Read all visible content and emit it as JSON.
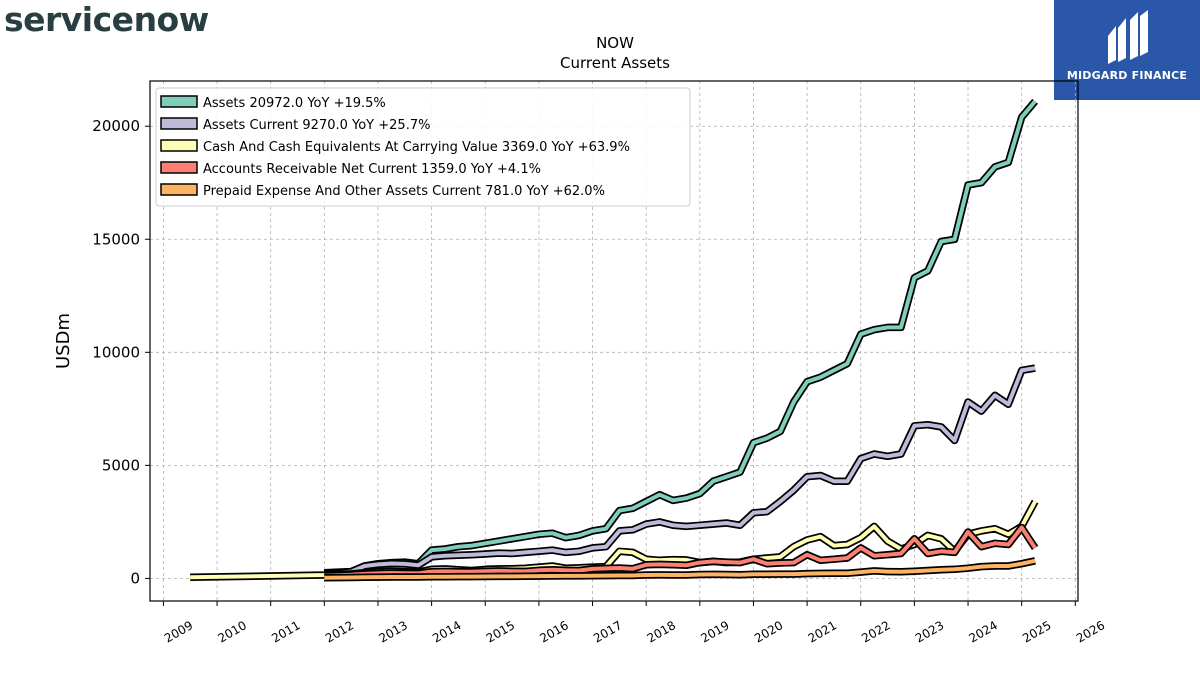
{
  "brand": {
    "left_logo_text": "servicenow",
    "right_logo_text": "MIDGARD FINANCE"
  },
  "chart_data": {
    "type": "line",
    "title": "NOW",
    "subtitle": "Current  Assets",
    "xlabel": "",
    "ylabel": "USDm",
    "xlim": [
      2008.75,
      2026.05
    ],
    "ylim": [
      -1000,
      22000
    ],
    "xticks": [
      "2009",
      "2010",
      "2011",
      "2012",
      "2013",
      "2014",
      "2015",
      "2016",
      "2017",
      "2018",
      "2019",
      "2020",
      "2021",
      "2022",
      "2023",
      "2024",
      "2025",
      "2026"
    ],
    "yticks": [
      0,
      5000,
      10000,
      15000,
      20000
    ],
    "grid": true,
    "legend_position": "top-left",
    "series": [
      {
        "name": "Assets",
        "legend": "Assets  20972.0 YoY +19.5%",
        "color": "#7fcdbb",
        "x": [
          2012.0,
          2012.25,
          2012.5,
          2012.75,
          2013.0,
          2013.25,
          2013.5,
          2013.75,
          2014.0,
          2014.25,
          2014.5,
          2014.75,
          2015.0,
          2015.25,
          2015.5,
          2015.75,
          2016.0,
          2016.25,
          2016.5,
          2016.75,
          2017.0,
          2017.25,
          2017.5,
          2017.75,
          2018.0,
          2018.25,
          2018.5,
          2018.75,
          2019.0,
          2019.25,
          2019.5,
          2019.75,
          2020.0,
          2020.25,
          2020.5,
          2020.75,
          2021.0,
          2021.25,
          2021.5,
          2021.75,
          2022.0,
          2022.25,
          2022.5,
          2022.75,
          2023.0,
          2023.25,
          2023.5,
          2023.75,
          2024.0,
          2024.25,
          2024.5,
          2024.75,
          2025.0,
          2025.25
        ],
        "y": [
          250,
          280,
          300,
          550,
          650,
          700,
          720,
          650,
          1250,
          1300,
          1400,
          1450,
          1550,
          1650,
          1750,
          1850,
          1950,
          2000,
          1800,
          1900,
          2100,
          2200,
          3000,
          3100,
          3400,
          3700,
          3450,
          3550,
          3750,
          4300,
          4500,
          4700,
          6000,
          6200,
          6500,
          7800,
          8700,
          8900,
          9200,
          9500,
          10800,
          11000,
          11100,
          11100,
          13300,
          13600,
          14900,
          15000,
          17400,
          17500,
          18200,
          18400,
          20400,
          21100
        ]
      },
      {
        "name": "Assets Current",
        "legend": "Assets Current  9270.0 YoY +25.7%",
        "color": "#bebada",
        "x": [
          2012.0,
          2012.25,
          2012.5,
          2012.75,
          2013.0,
          2013.25,
          2013.5,
          2013.75,
          2014.0,
          2014.25,
          2014.5,
          2014.75,
          2015.0,
          2015.25,
          2015.5,
          2015.75,
          2016.0,
          2016.25,
          2016.5,
          2016.75,
          2017.0,
          2017.25,
          2017.5,
          2017.75,
          2018.0,
          2018.25,
          2018.5,
          2018.75,
          2019.0,
          2019.25,
          2019.5,
          2019.75,
          2020.0,
          2020.25,
          2020.5,
          2020.75,
          2021.0,
          2021.25,
          2021.5,
          2021.75,
          2022.0,
          2022.25,
          2022.5,
          2022.75,
          2023.0,
          2023.25,
          2023.5,
          2023.75,
          2024.0,
          2024.25,
          2024.5,
          2024.75,
          2025.0,
          2025.25
        ],
        "y": [
          200,
          250,
          300,
          550,
          620,
          660,
          640,
          580,
          950,
          1000,
          1020,
          1050,
          1080,
          1120,
          1100,
          1150,
          1200,
          1250,
          1150,
          1200,
          1350,
          1400,
          2100,
          2150,
          2400,
          2500,
          2350,
          2300,
          2350,
          2400,
          2450,
          2350,
          2900,
          2950,
          3400,
          3900,
          4500,
          4550,
          4300,
          4300,
          5300,
          5500,
          5400,
          5500,
          6750,
          6800,
          6700,
          6100,
          7800,
          7400,
          8100,
          7700,
          9200,
          9300
        ]
      },
      {
        "name": "Cash And Cash Equivalents At Carrying Value",
        "legend": "Cash And Cash Equivalents At Carrying Value  3369.0 YoY +63.9%",
        "color": "#ffffb3",
        "x": [
          2009.5,
          2012.0,
          2012.25,
          2012.5,
          2012.75,
          2013.0,
          2013.25,
          2013.5,
          2013.75,
          2014.0,
          2014.25,
          2014.5,
          2014.75,
          2015.0,
          2015.25,
          2015.5,
          2015.75,
          2016.0,
          2016.25,
          2016.5,
          2016.75,
          2017.0,
          2017.25,
          2017.5,
          2017.75,
          2018.0,
          2018.25,
          2018.5,
          2018.75,
          2019.0,
          2019.25,
          2019.5,
          2019.75,
          2020.0,
          2020.25,
          2020.5,
          2020.75,
          2021.0,
          2021.25,
          2021.5,
          2021.75,
          2022.0,
          2022.25,
          2022.5,
          2022.75,
          2023.0,
          2023.25,
          2023.5,
          2023.75,
          2024.0,
          2024.25,
          2024.5,
          2024.75,
          2025.0,
          2025.25
        ],
        "y": [
          50,
          150,
          180,
          200,
          250,
          300,
          320,
          300,
          280,
          400,
          420,
          380,
          350,
          400,
          420,
          430,
          450,
          500,
          550,
          450,
          470,
          500,
          520,
          1200,
          1150,
          850,
          800,
          830,
          820,
          700,
          750,
          700,
          720,
          850,
          900,
          950,
          1400,
          1700,
          1850,
          1450,
          1500,
          1800,
          2300,
          1650,
          1300,
          1500,
          1900,
          1750,
          1200,
          1950,
          2100,
          2200,
          1950,
          2300,
          3400
        ]
      },
      {
        "name": "Accounts Receivable Net Current",
        "legend": "Accounts Receivable Net Current  1359.0 YoY +4.1%",
        "color": "#fb8072",
        "x": [
          2012.0,
          2012.25,
          2012.5,
          2012.75,
          2013.0,
          2013.25,
          2013.5,
          2013.75,
          2014.0,
          2014.25,
          2014.5,
          2014.75,
          2015.0,
          2015.25,
          2015.5,
          2015.75,
          2016.0,
          2016.25,
          2016.5,
          2016.75,
          2017.0,
          2017.25,
          2017.5,
          2017.75,
          2018.0,
          2018.25,
          2018.5,
          2018.75,
          2019.0,
          2019.25,
          2019.5,
          2019.75,
          2020.0,
          2020.25,
          2020.5,
          2020.75,
          2021.0,
          2021.25,
          2021.5,
          2021.75,
          2022.0,
          2022.25,
          2022.5,
          2022.75,
          2023.0,
          2023.25,
          2023.5,
          2023.75,
          2024.0,
          2024.25,
          2024.5,
          2024.75,
          2025.0,
          2025.25
        ],
        "y": [
          120,
          140,
          160,
          200,
          220,
          240,
          230,
          220,
          300,
          310,
          300,
          290,
          320,
          330,
          320,
          310,
          360,
          380,
          360,
          350,
          420,
          440,
          460,
          430,
          600,
          620,
          600,
          580,
          700,
          750,
          720,
          700,
          850,
          650,
          680,
          700,
          1050,
          800,
          850,
          900,
          1350,
          1000,
          1050,
          1100,
          1750,
          1100,
          1200,
          1150,
          2050,
          1400,
          1550,
          1500,
          2250,
          1350
        ]
      },
      {
        "name": "Prepaid Expense And Other Assets Current",
        "legend": "Prepaid Expense And Other Assets Current  781.0 YoY +62.0%",
        "color": "#fdb462",
        "x": [
          2012.0,
          2012.25,
          2012.5,
          2012.75,
          2013.0,
          2013.25,
          2013.5,
          2013.75,
          2014.0,
          2014.25,
          2014.5,
          2014.75,
          2015.0,
          2015.25,
          2015.5,
          2015.75,
          2016.0,
          2016.25,
          2016.5,
          2016.75,
          2017.0,
          2017.25,
          2017.5,
          2017.75,
          2018.0,
          2018.25,
          2018.5,
          2018.75,
          2019.0,
          2019.25,
          2019.5,
          2019.75,
          2020.0,
          2020.25,
          2020.5,
          2020.75,
          2021.0,
          2021.25,
          2021.5,
          2021.75,
          2022.0,
          2022.25,
          2022.5,
          2022.75,
          2023.0,
          2023.25,
          2023.5,
          2023.75,
          2024.0,
          2024.25,
          2024.5,
          2024.75,
          2025.0,
          2025.25
        ],
        "y": [
          30,
          35,
          40,
          50,
          55,
          60,
          60,
          60,
          70,
          75,
          80,
          80,
          85,
          90,
          90,
          95,
          100,
          105,
          110,
          110,
          120,
          125,
          130,
          130,
          150,
          155,
          150,
          150,
          170,
          175,
          170,
          165,
          180,
          185,
          190,
          190,
          210,
          220,
          230,
          230,
          280,
          330,
          300,
          290,
          320,
          350,
          380,
          400,
          450,
          520,
          550,
          550,
          650,
          780
        ]
      }
    ]
  }
}
